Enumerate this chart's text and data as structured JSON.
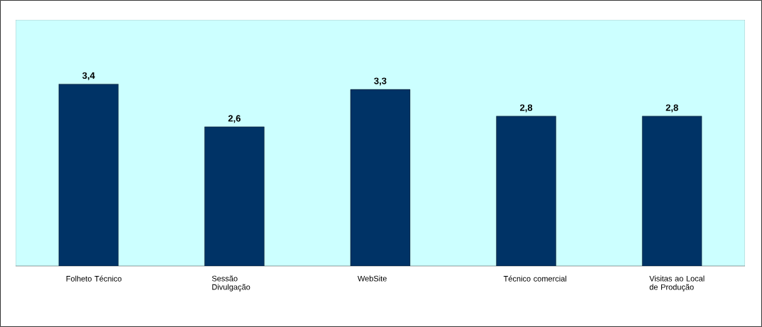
{
  "chart_data": {
    "type": "bar",
    "categories": [
      "Folheto Técnico",
      "Sessão Divulgação",
      "WebSite",
      "Técnico comercial",
      "Visitas ao Local de Produção"
    ],
    "values": [
      3.4,
      2.6,
      3.3,
      2.8,
      2.8
    ],
    "value_labels": [
      "3,4",
      "2,6",
      "3,3",
      "2,8",
      "2,8"
    ],
    "color": "#003366",
    "ylim": [
      0,
      4.6
    ],
    "tick_labels": "x"
  }
}
